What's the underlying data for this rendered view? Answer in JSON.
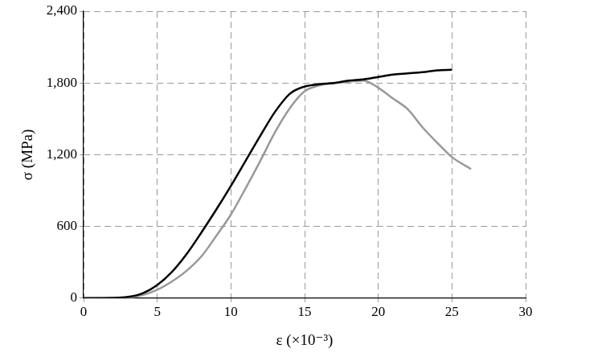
{
  "chart_data": {
    "type": "line",
    "x_label": "ε (×10⁻³)",
    "y_label": "σ (MPa)",
    "xlim": [
      0,
      30
    ],
    "xticks": [
      0,
      5,
      10,
      15,
      20,
      25,
      30
    ],
    "ylim": [
      0,
      2400
    ],
    "yticks": [
      0,
      600,
      1200,
      1800,
      2400
    ],
    "grid": true,
    "series": [
      {
        "color": "#000000",
        "line_style": "solid",
        "x": [
          0,
          2,
          3,
          4,
          5,
          6,
          7,
          8,
          9,
          10,
          11,
          12,
          13,
          14,
          15,
          16,
          17,
          18,
          19,
          20,
          21,
          22,
          23,
          24,
          25
        ],
        "values": [
          0,
          2,
          10,
          40,
          110,
          220,
          370,
          550,
          740,
          940,
          1150,
          1360,
          1560,
          1710,
          1770,
          1790,
          1800,
          1820,
          1830,
          1850,
          1870,
          1880,
          1890,
          1905,
          1910
        ]
      },
      {
        "color": "#999999",
        "line_style": "solid",
        "x": [
          0,
          3,
          4,
          5,
          6,
          7,
          8,
          9,
          10,
          11,
          12,
          13,
          14,
          15,
          16,
          17,
          18,
          19,
          20,
          21,
          22,
          23,
          24,
          25,
          26.3
        ],
        "values": [
          0,
          5,
          25,
          70,
          140,
          230,
          350,
          520,
          700,
          920,
          1150,
          1390,
          1590,
          1730,
          1780,
          1800,
          1810,
          1820,
          1760,
          1670,
          1580,
          1430,
          1300,
          1180,
          1080
        ]
      }
    ]
  }
}
